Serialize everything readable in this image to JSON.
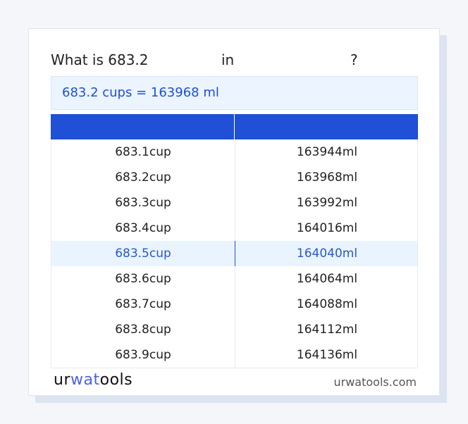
{
  "title": {
    "prefix": "What is 683.2",
    "middle": "in",
    "suffix": "?"
  },
  "result": "683.2 cups = 163968 ml",
  "table": {
    "headers": [
      "",
      ""
    ],
    "rows": [
      [
        "683.1cup",
        "163944ml"
      ],
      [
        "683.2cup",
        "163968ml"
      ],
      [
        "683.3cup",
        "163992ml"
      ],
      [
        "683.4cup",
        "164016ml"
      ],
      [
        "683.5cup",
        "164040ml"
      ],
      [
        "683.6cup",
        "164064ml"
      ],
      [
        "683.7cup",
        "164088ml"
      ],
      [
        "683.8cup",
        "164112ml"
      ],
      [
        "683.9cup",
        "164136ml"
      ]
    ],
    "highlighted_row": 4
  },
  "footer": {
    "logo": "urwatools",
    "logo_parts": [
      "ur",
      "wat",
      "ools"
    ],
    "site": "urwatools.com"
  },
  "colors": {
    "accent": "#1f50d5",
    "highlight_bg": "#eaf4ff"
  }
}
